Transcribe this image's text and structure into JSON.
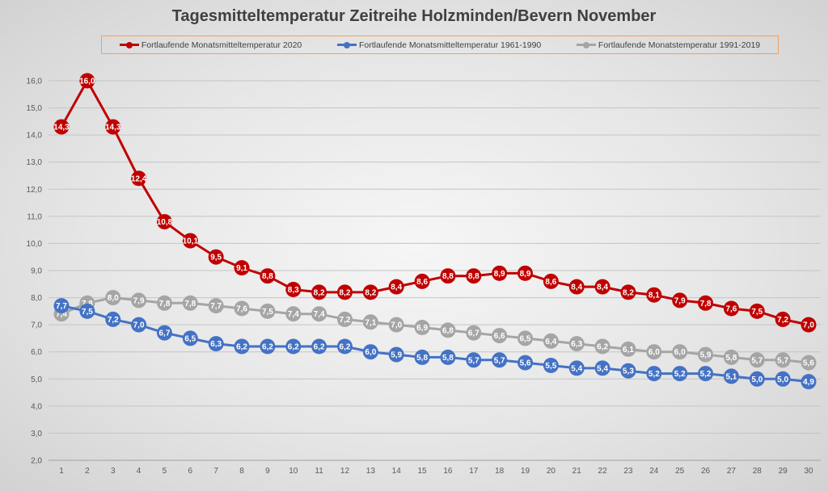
{
  "chart_data": {
    "type": "line",
    "title": "Tagesmitteltemperatur Zeitreihe Holzminden/Bevern November",
    "xlabel": "",
    "ylabel": "",
    "x": [
      1,
      2,
      3,
      4,
      5,
      6,
      7,
      8,
      9,
      10,
      11,
      12,
      13,
      14,
      15,
      16,
      17,
      18,
      19,
      20,
      21,
      22,
      23,
      24,
      25,
      26,
      27,
      28,
      29,
      30
    ],
    "ylim": [
      2.0,
      16.0
    ],
    "yticks": [
      "2,0",
      "3,0",
      "4,0",
      "5,0",
      "6,0",
      "7,0",
      "8,0",
      "9,0",
      "10,0",
      "11,0",
      "12,0",
      "13,0",
      "14,0",
      "15,0",
      "16,0"
    ],
    "grid": true,
    "legend_position": "top",
    "series": [
      {
        "name": "Fortlaufende Monatsmitteltemperatur 2020",
        "color": "#c00000",
        "values": [
          14.3,
          16.0,
          14.3,
          12.4,
          10.8,
          10.1,
          9.5,
          9.1,
          8.8,
          8.3,
          8.2,
          8.2,
          8.2,
          8.4,
          8.6,
          8.8,
          8.8,
          8.9,
          8.9,
          8.6,
          8.4,
          8.4,
          8.2,
          8.1,
          7.9,
          7.8,
          7.6,
          7.5,
          7.2,
          7.0
        ]
      },
      {
        "name": "Fortlaufende Monatsmitteltemperatur 1961-1990",
        "color": "#4472c4",
        "values": [
          7.7,
          7.5,
          7.2,
          7.0,
          6.7,
          6.5,
          6.3,
          6.2,
          6.2,
          6.2,
          6.2,
          6.2,
          6.0,
          5.9,
          5.8,
          5.8,
          5.7,
          5.7,
          5.6,
          5.5,
          5.4,
          5.4,
          5.3,
          5.2,
          5.2,
          5.2,
          5.1,
          5.0,
          5.0,
          4.9
        ]
      },
      {
        "name": "Fortlaufende Monatstemperatur 1991-2019",
        "color": "#a5a5a5",
        "values": [
          7.4,
          7.8,
          8.0,
          7.9,
          7.8,
          7.8,
          7.7,
          7.6,
          7.5,
          7.4,
          7.4,
          7.2,
          7.1,
          7.0,
          6.9,
          6.8,
          6.7,
          6.6,
          6.5,
          6.4,
          6.3,
          6.2,
          6.1,
          6.0,
          6.0,
          5.9,
          5.8,
          5.7,
          5.7,
          5.6
        ]
      }
    ]
  }
}
